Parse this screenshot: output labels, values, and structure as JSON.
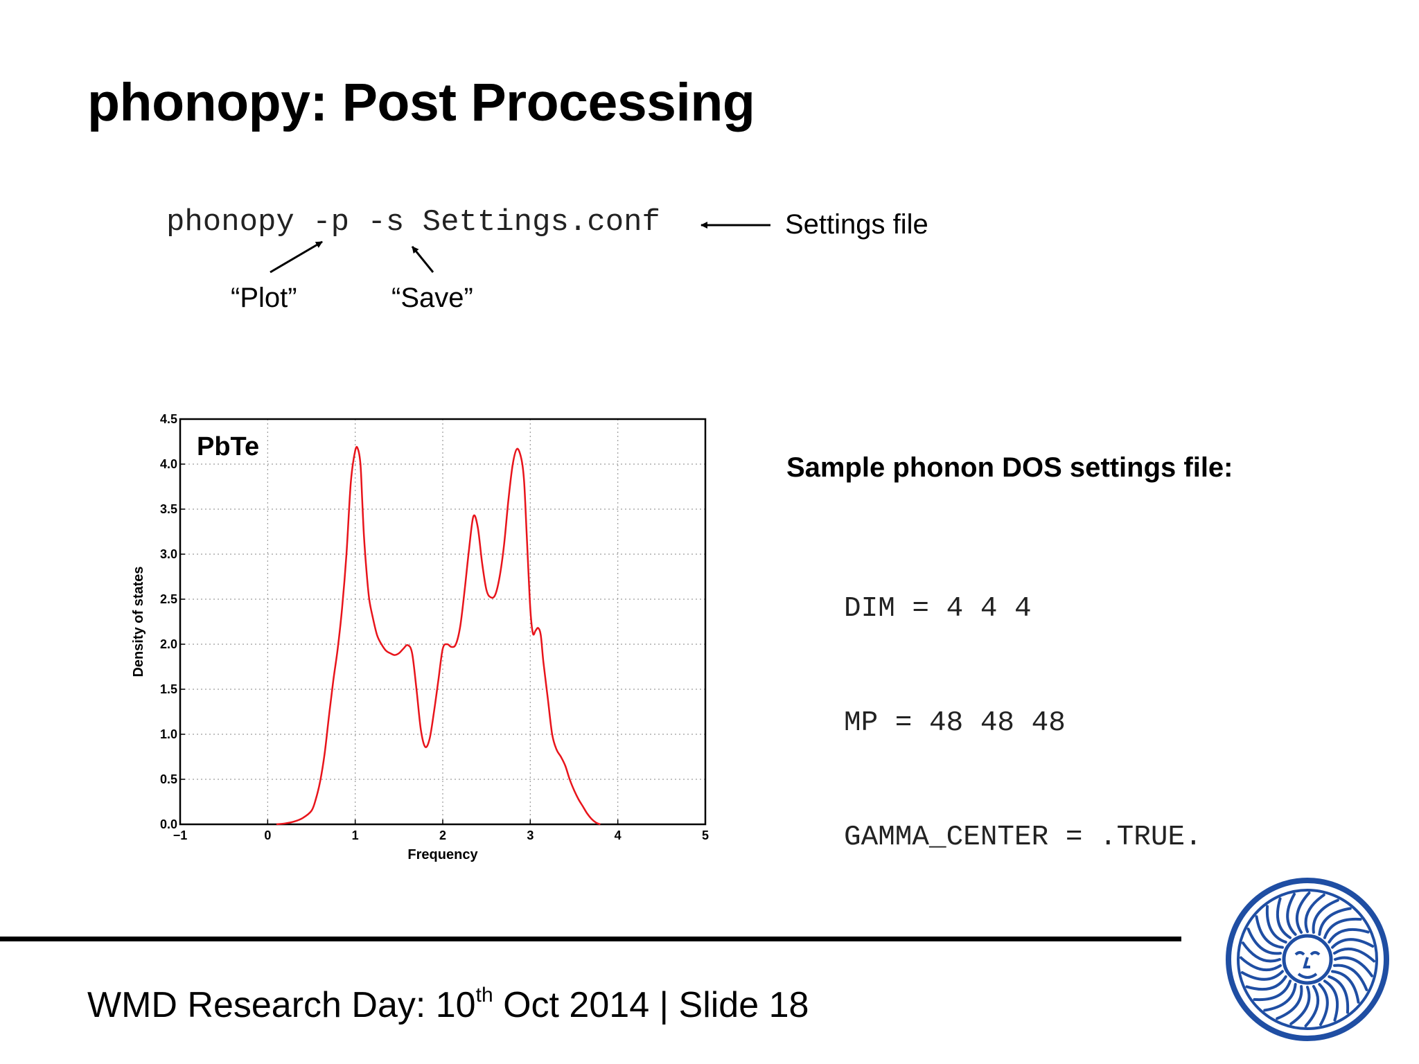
{
  "slide": {
    "title": "phonopy: Post Processing",
    "command": "phonopy -p -s Settings.conf",
    "annotations": {
      "settings_file": "Settings file",
      "plot": "“Plot”",
      "save": "“Save”"
    },
    "sample_heading": "Sample phonon DOS settings file:",
    "settings_lines": [
      "DIM = 4 4 4",
      "MP = 48 48 48",
      "GAMMA_CENTER = .TRUE."
    ],
    "footer": {
      "prefix": "WMD Research Day: 10",
      "sup": "th",
      "suffix": " Oct 2014 | Slide 18"
    },
    "logo_icon": "university-seal-logo",
    "logo_color": "#1f4ea3"
  },
  "chart_data": {
    "type": "line",
    "title": "",
    "annotation": "PbTe",
    "xlabel": "Frequency",
    "ylabel": "Density of states",
    "xlim": [
      -1,
      5
    ],
    "ylim": [
      0,
      4.5
    ],
    "xticks": [
      "−1",
      "0",
      "1",
      "2",
      "3",
      "4",
      "5"
    ],
    "yticks": [
      "0.0",
      "0.5",
      "1.0",
      "1.5",
      "2.0",
      "2.5",
      "3.0",
      "3.5",
      "4.0",
      "4.5"
    ],
    "grid": true,
    "line_color": "#e8141b",
    "series": [
      {
        "x": [
          0.1,
          0.2,
          0.3,
          0.4,
          0.5,
          0.55,
          0.6,
          0.65,
          0.7,
          0.75,
          0.8,
          0.85,
          0.9,
          0.95,
          1.0,
          1.03,
          1.06,
          1.08,
          1.1,
          1.13,
          1.16,
          1.2,
          1.25,
          1.3,
          1.35,
          1.4,
          1.45,
          1.5,
          1.55,
          1.6,
          1.65,
          1.7,
          1.75,
          1.8,
          1.85,
          1.9,
          1.95,
          2.0,
          2.05,
          2.1,
          2.15,
          2.2,
          2.25,
          2.3,
          2.35,
          2.4,
          2.45,
          2.5,
          2.55,
          2.6,
          2.65,
          2.7,
          2.75,
          2.8,
          2.85,
          2.9,
          2.93,
          2.96,
          3.0,
          3.03,
          3.06,
          3.09,
          3.12,
          3.15,
          3.2,
          3.25,
          3.3,
          3.35,
          3.4,
          3.45,
          3.5,
          3.55,
          3.6,
          3.65,
          3.7,
          3.75,
          3.8
        ],
        "y": [
          0.0,
          0.01,
          0.03,
          0.07,
          0.15,
          0.28,
          0.48,
          0.78,
          1.2,
          1.6,
          1.95,
          2.4,
          3.0,
          3.8,
          4.15,
          4.17,
          4.0,
          3.6,
          3.2,
          2.8,
          2.5,
          2.3,
          2.1,
          2.0,
          1.93,
          1.9,
          1.88,
          1.9,
          1.95,
          1.99,
          1.9,
          1.5,
          1.05,
          0.86,
          0.95,
          1.25,
          1.6,
          1.95,
          2.0,
          1.97,
          2.0,
          2.2,
          2.6,
          3.05,
          3.42,
          3.3,
          2.9,
          2.6,
          2.52,
          2.55,
          2.75,
          3.1,
          3.6,
          4.0,
          4.17,
          4.05,
          3.8,
          3.2,
          2.4,
          2.12,
          2.15,
          2.18,
          2.1,
          1.8,
          1.4,
          1.0,
          0.83,
          0.75,
          0.65,
          0.5,
          0.38,
          0.28,
          0.2,
          0.12,
          0.06,
          0.02,
          0.0
        ]
      }
    ]
  }
}
